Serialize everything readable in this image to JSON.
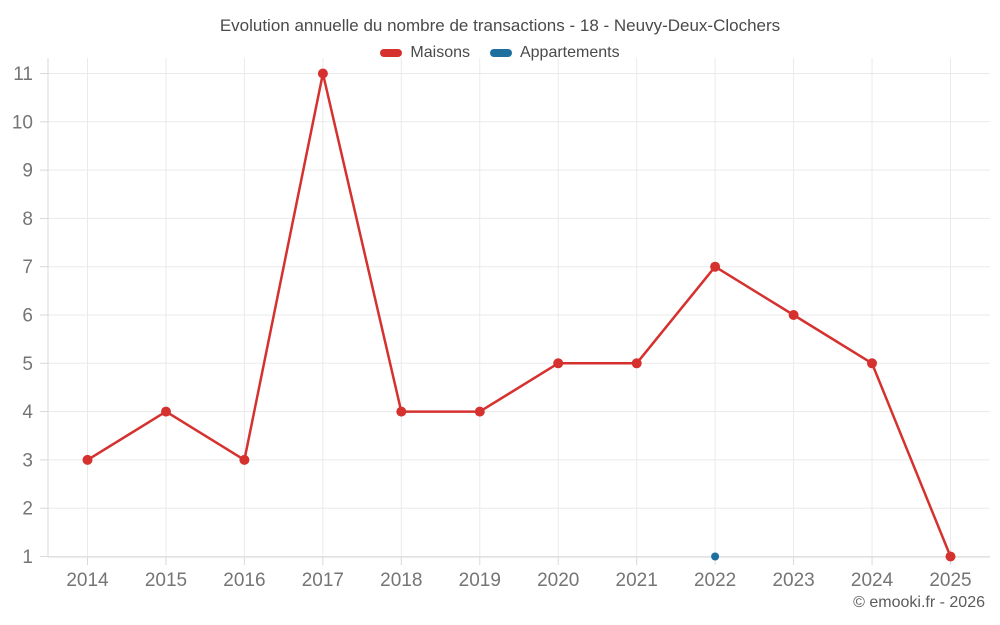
{
  "title": "Evolution annuelle du nombre de transactions - 18 - Neuvy-Deux-Clochers",
  "copyright": "© emooki.fr - 2026",
  "colors": {
    "grid": "#eaeaea",
    "axis": "#d9d9d9",
    "axis_label": "#757575",
    "title_text": "#4a4a4a",
    "copyright_text": "#5b5b5b",
    "maisons_red": "#d5312e",
    "appartements_blue": "#1d6fa0",
    "background": "#ffffff"
  },
  "chart_data": {
    "type": "line",
    "title": "Evolution annuelle du nombre de transactions - 18 - Neuvy-Deux-Clochers",
    "categories": [
      "2014",
      "2015",
      "2016",
      "2017",
      "2018",
      "2019",
      "2020",
      "2021",
      "2022",
      "2023",
      "2024",
      "2025"
    ],
    "series": [
      {
        "name": "Maisons",
        "color": "#d5312e",
        "values": [
          3,
          4,
          3,
          11,
          4,
          4,
          5,
          5,
          7,
          6,
          5,
          1
        ]
      },
      {
        "name": "Appartements",
        "color": "#1d6fa0",
        "values": [
          null,
          null,
          null,
          null,
          null,
          null,
          null,
          null,
          1,
          null,
          null,
          null
        ]
      }
    ],
    "ylim": [
      1,
      11
    ],
    "yticks": [
      1,
      2,
      3,
      4,
      5,
      6,
      7,
      8,
      9,
      10,
      11
    ],
    "xlabel": "",
    "ylabel": "",
    "grid": true,
    "legend_position": "top"
  }
}
